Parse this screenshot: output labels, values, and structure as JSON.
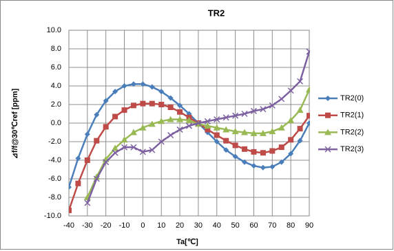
{
  "chart_data": {
    "type": "line",
    "title": "TR2",
    "x_label": "Ta[℃]",
    "y_label": "⊿f/f@30℃ref [ppm]",
    "x": [
      -40,
      -35,
      -30,
      -25,
      -20,
      -15,
      -10,
      -5,
      0,
      5,
      10,
      15,
      20,
      25,
      30,
      35,
      40,
      45,
      50,
      55,
      60,
      65,
      70,
      75,
      80,
      85,
      90
    ],
    "series": [
      {
        "name": "TR2(0)",
        "color": "#4a7ebb",
        "marker": "diamond",
        "values": [
          -6.9,
          -3.8,
          -1.2,
          0.9,
          2.4,
          3.4,
          4.0,
          4.2,
          4.2,
          3.9,
          3.4,
          2.7,
          1.9,
          1.0,
          0.0,
          -1.0,
          -2.0,
          -2.9,
          -3.6,
          -4.2,
          -4.6,
          -4.8,
          -4.7,
          -4.2,
          -3.3,
          -1.9,
          0.0
        ]
      },
      {
        "name": "TR2(1)",
        "color": "#be4b48",
        "marker": "square",
        "values": [
          -9.4,
          -6.5,
          -4.0,
          -1.9,
          -0.4,
          0.7,
          1.4,
          1.9,
          2.1,
          2.1,
          2.0,
          1.7,
          1.2,
          0.6,
          0.0,
          -0.7,
          -1.3,
          -1.9,
          -2.4,
          -2.8,
          -3.1,
          -3.2,
          -3.0,
          -2.6,
          -1.8,
          -0.6,
          0.8
        ]
      },
      {
        "name": "TR2(2)",
        "color": "#98b954",
        "marker": "triangle",
        "values": [
          null,
          null,
          -8.0,
          -5.8,
          -3.9,
          -2.7,
          -1.8,
          -1.0,
          -0.5,
          -0.1,
          0.2,
          0.4,
          0.4,
          0.3,
          -0.1,
          -0.3,
          -0.5,
          -0.7,
          -0.9,
          -1.0,
          -1.1,
          -1.1,
          -0.9,
          -0.5,
          0.3,
          1.4,
          3.6
        ]
      },
      {
        "name": "TR2(3)",
        "color": "#7d60a0",
        "marker": "x",
        "values": [
          null,
          null,
          -8.6,
          -6.0,
          -4.2,
          -3.2,
          -2.6,
          -2.6,
          -3.1,
          -2.9,
          -2.0,
          -1.3,
          -0.7,
          -0.3,
          0.0,
          0.2,
          0.4,
          0.6,
          0.8,
          1.0,
          1.3,
          1.5,
          1.9,
          2.6,
          3.5,
          4.5,
          7.7
        ]
      }
    ],
    "xlim": [
      -40,
      90
    ],
    "xticks": [
      -40,
      -30,
      -20,
      -10,
      0,
      10,
      20,
      30,
      40,
      50,
      60,
      70,
      80,
      90
    ],
    "ylim": [
      -10,
      10
    ],
    "yticks": [
      {
        "value": -10,
        "label": "-10.0"
      },
      {
        "value": -8,
        "label": "-8.0"
      },
      {
        "value": -6,
        "label": "-6.0"
      },
      {
        "value": -4,
        "label": "-4.0"
      },
      {
        "value": -2,
        "label": "-2.0"
      },
      {
        "value": 0,
        "label": "0.0"
      },
      {
        "value": 2,
        "label": "2.0"
      },
      {
        "value": 4,
        "label": "4.0"
      },
      {
        "value": 6,
        "label": "6.0"
      },
      {
        "value": 8,
        "label": "8.0"
      },
      {
        "value": 10,
        "label": "10.0"
      }
    ],
    "grid": true,
    "legend": "right"
  }
}
